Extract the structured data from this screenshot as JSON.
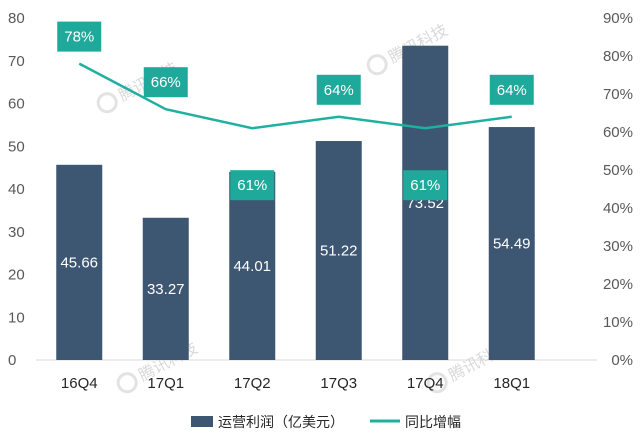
{
  "chart_data": {
    "type": "bar",
    "categories": [
      "16Q4",
      "17Q1",
      "17Q2",
      "17Q3",
      "17Q4",
      "18Q1"
    ],
    "series": [
      {
        "name": "运营利润（亿美元）",
        "type": "bar",
        "axis": "left",
        "values": [
          45.66,
          33.27,
          44.01,
          51.22,
          73.52,
          54.49
        ],
        "labels": [
          "45.66",
          "33.27",
          "44.01",
          "51.22",
          "73.52",
          "54.49"
        ]
      },
      {
        "name": "同比增幅",
        "type": "line",
        "axis": "right",
        "values": [
          78,
          66,
          61,
          64,
          61,
          64
        ],
        "labels": [
          "78%",
          "66%",
          "61%",
          "64%",
          "61%",
          "64%"
        ]
      }
    ],
    "y_left": {
      "range": [
        0,
        80
      ],
      "ticks": [
        "0",
        "10",
        "20",
        "30",
        "40",
        "50",
        "60",
        "70",
        "80"
      ]
    },
    "y_right": {
      "range": [
        0,
        90
      ],
      "unit": "%",
      "ticks": [
        "0%",
        "10%",
        "20%",
        "30%",
        "40%",
        "50%",
        "60%",
        "70%",
        "80%",
        "90%"
      ]
    },
    "grid": false,
    "legend_position": "bottom",
    "colors": {
      "bar": "#3d5672",
      "line": "#1fb0a0",
      "label_box": "#1fa99a"
    }
  },
  "watermark": {
    "text": "腾讯科技"
  }
}
